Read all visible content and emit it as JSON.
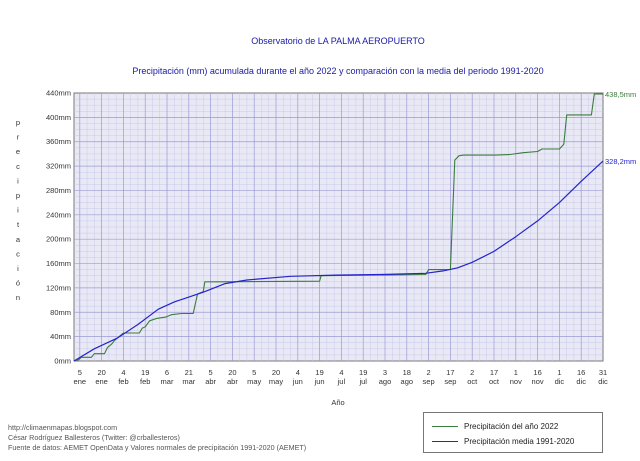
{
  "title": "Observatorio de LA PALMA AEROPUERTO",
  "subtitle": "Precipitación (mm) acumulada durante el año 2022 y comparación con la media del periodo 1991-2020",
  "credits": [
    "http://climaenmapas.blogspot.com",
    "César Rodríguez Ballesteros (Twitter: @crballesteros)",
    "Fuente de datos: AEMET OpenData y Valores normales de precipitación 1991-2020 (AEMET)"
  ],
  "chart_data": {
    "type": "line",
    "title": "Precipitación (mm) acumulada durante el año 2022 y comparación con la media del periodo 1991-2020",
    "xlabel": "Año",
    "ylabel": "precipitación",
    "xlim": [
      1,
      365
    ],
    "ylim": [
      0,
      440
    ],
    "grid": true,
    "legend_position": "bottom-right",
    "y_ticks": [
      "0mm",
      "40mm",
      "80mm",
      "120mm",
      "160mm",
      "200mm",
      "240mm",
      "280mm",
      "320mm",
      "360mm",
      "400mm",
      "440mm"
    ],
    "x_ticks": [
      {
        "day": "5",
        "month": "ene"
      },
      {
        "day": "20",
        "month": "ene"
      },
      {
        "day": "4",
        "month": "feb"
      },
      {
        "day": "19",
        "month": "feb"
      },
      {
        "day": "6",
        "month": "mar"
      },
      {
        "day": "21",
        "month": "mar"
      },
      {
        "day": "5",
        "month": "abr"
      },
      {
        "day": "20",
        "month": "abr"
      },
      {
        "day": "5",
        "month": "may"
      },
      {
        "day": "20",
        "month": "may"
      },
      {
        "day": "4",
        "month": "jun"
      },
      {
        "day": "19",
        "month": "jun"
      },
      {
        "day": "4",
        "month": "jul"
      },
      {
        "day": "19",
        "month": "jul"
      },
      {
        "day": "3",
        "month": "ago"
      },
      {
        "day": "18",
        "month": "ago"
      },
      {
        "day": "2",
        "month": "sep"
      },
      {
        "day": "17",
        "month": "sep"
      },
      {
        "day": "2",
        "month": "oct"
      },
      {
        "day": "17",
        "month": "oct"
      },
      {
        "day": "1",
        "month": "nov"
      },
      {
        "day": "16",
        "month": "nov"
      },
      {
        "day": "1",
        "month": "dic"
      },
      {
        "day": "16",
        "month": "dic"
      },
      {
        "day": "31",
        "month": "dic"
      }
    ],
    "x_tick_days": [
      5,
      20,
      35,
      50,
      65,
      80,
      95,
      110,
      125,
      140,
      155,
      170,
      185,
      200,
      215,
      230,
      245,
      260,
      275,
      290,
      305,
      320,
      335,
      350,
      365
    ],
    "series": [
      {
        "name": "Precipitación del año 2022",
        "color": "#3a7d3a",
        "end_label": "438,5mm",
        "points": [
          [
            1,
            0
          ],
          [
            4,
            2
          ],
          [
            6,
            6
          ],
          [
            13,
            6
          ],
          [
            15,
            12
          ],
          [
            22,
            12
          ],
          [
            24,
            22
          ],
          [
            27,
            28
          ],
          [
            29,
            34
          ],
          [
            32,
            40
          ],
          [
            35,
            46
          ],
          [
            46,
            46
          ],
          [
            48,
            54
          ],
          [
            50,
            56
          ],
          [
            53,
            66
          ],
          [
            58,
            70
          ],
          [
            64,
            72
          ],
          [
            68,
            76
          ],
          [
            75,
            78
          ],
          [
            83,
            78
          ],
          [
            86,
            110
          ],
          [
            90,
            114
          ],
          [
            91,
            130
          ],
          [
            101,
            130
          ],
          [
            170,
            131
          ],
          [
            171,
            140
          ],
          [
            243,
            142
          ],
          [
            245,
            150
          ],
          [
            260,
            150
          ],
          [
            263,
            330
          ],
          [
            266,
            337
          ],
          [
            269,
            338
          ],
          [
            291,
            338
          ],
          [
            301,
            339
          ],
          [
            310,
            342
          ],
          [
            320,
            344
          ],
          [
            323,
            348
          ],
          [
            335,
            348
          ],
          [
            338,
            356
          ],
          [
            340,
            404
          ],
          [
            357,
            404
          ],
          [
            359,
            438.5
          ],
          [
            365,
            438.5
          ]
        ]
      },
      {
        "name": "Precipitación media 1991-2020",
        "color": "#2424cc",
        "end_label": "328,2mm",
        "points": [
          [
            1,
            0
          ],
          [
            15,
            20
          ],
          [
            31,
            38
          ],
          [
            45,
            60
          ],
          [
            59,
            85
          ],
          [
            70,
            97
          ],
          [
            90,
            113
          ],
          [
            105,
            127
          ],
          [
            120,
            133
          ],
          [
            150,
            139
          ],
          [
            181,
            141
          ],
          [
            212,
            142
          ],
          [
            243,
            144
          ],
          [
            255,
            148
          ],
          [
            265,
            153
          ],
          [
            275,
            162
          ],
          [
            290,
            180
          ],
          [
            305,
            204
          ],
          [
            320,
            230
          ],
          [
            335,
            260
          ],
          [
            350,
            295
          ],
          [
            365,
            328.2
          ]
        ]
      }
    ]
  }
}
